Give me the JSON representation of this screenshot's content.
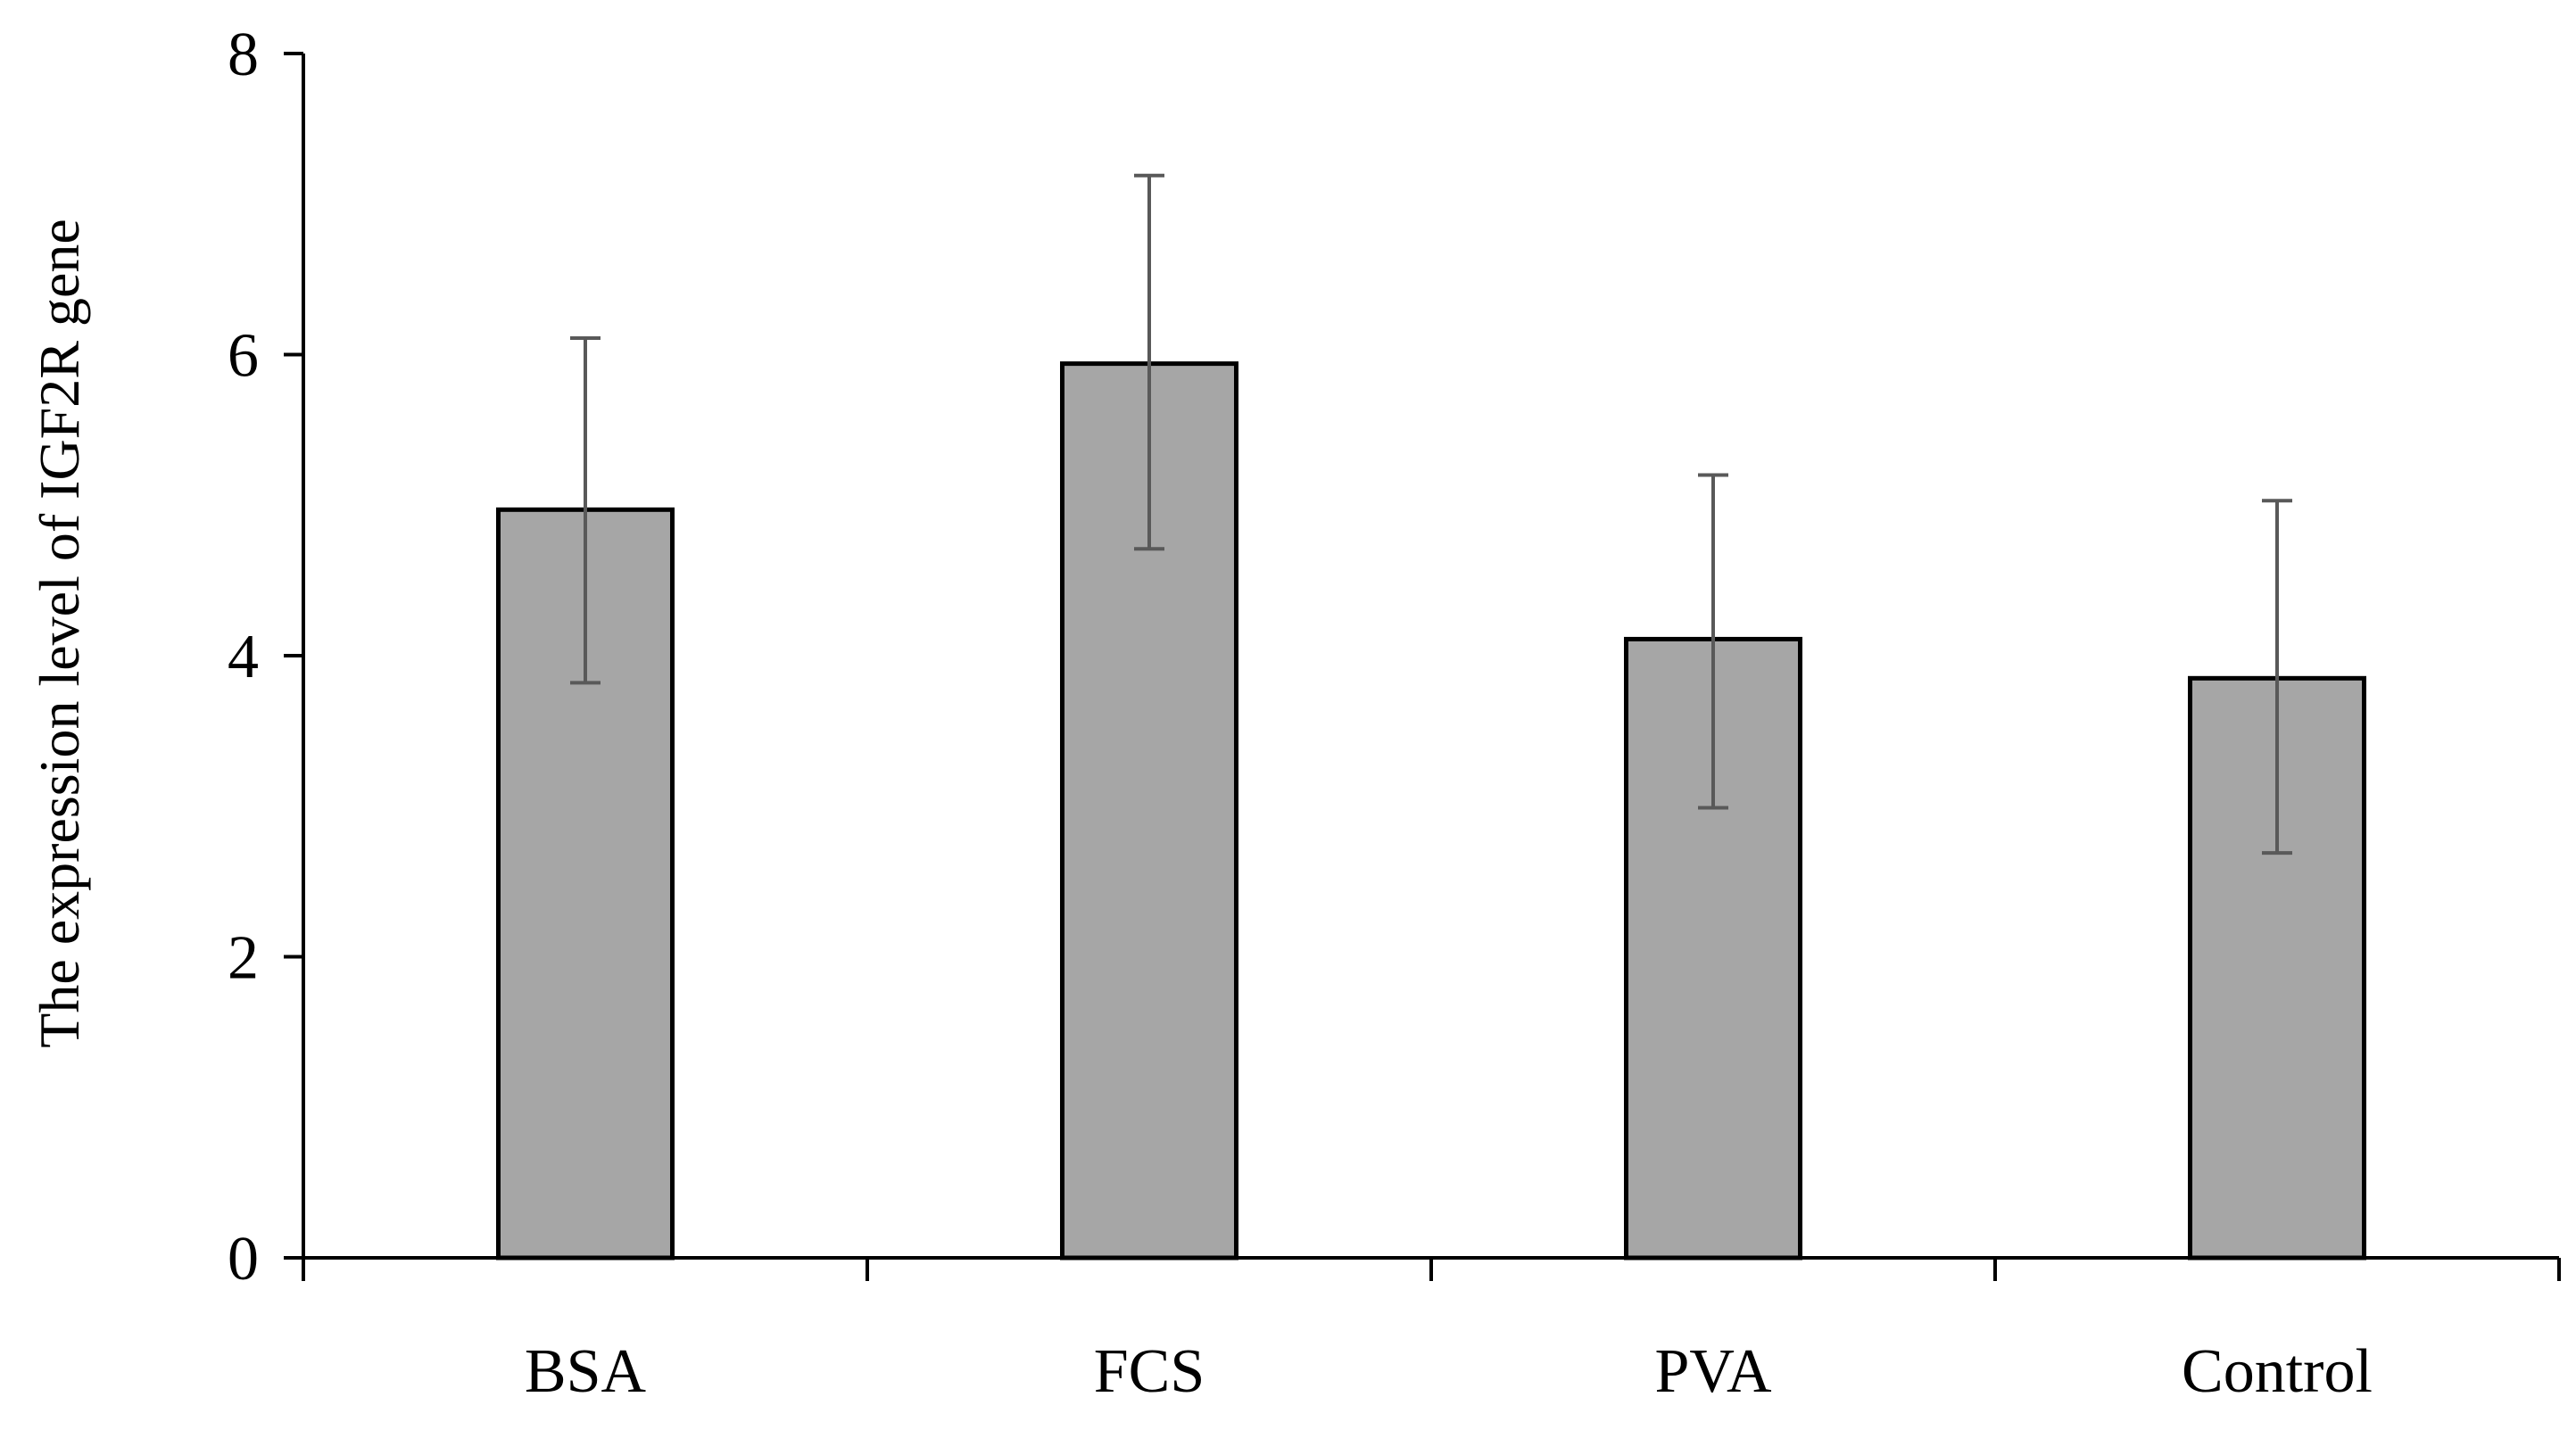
{
  "chart_data": {
    "type": "bar",
    "title": "",
    "xlabel": "",
    "ylabel": "The expression level of IGF2R gene",
    "categories": [
      "BSA",
      "FCS",
      "PVA",
      "Control"
    ],
    "series": [
      {
        "values": [
          4.97,
          5.94,
          4.11,
          3.85
        ],
        "error_low": [
          3.82,
          4.71,
          2.99,
          2.69
        ],
        "error_high": [
          6.11,
          7.19,
          5.2,
          5.03
        ]
      }
    ],
    "ylim": [
      0,
      8
    ],
    "yticks": [
      "0",
      "2",
      "4",
      "6",
      "8"
    ],
    "grid": false,
    "legend": "none",
    "colors": {
      "bar_fill": "#a6a6a6",
      "bar_stroke": "#000000",
      "error_bar": "#595959",
      "axis": "#000000"
    }
  }
}
